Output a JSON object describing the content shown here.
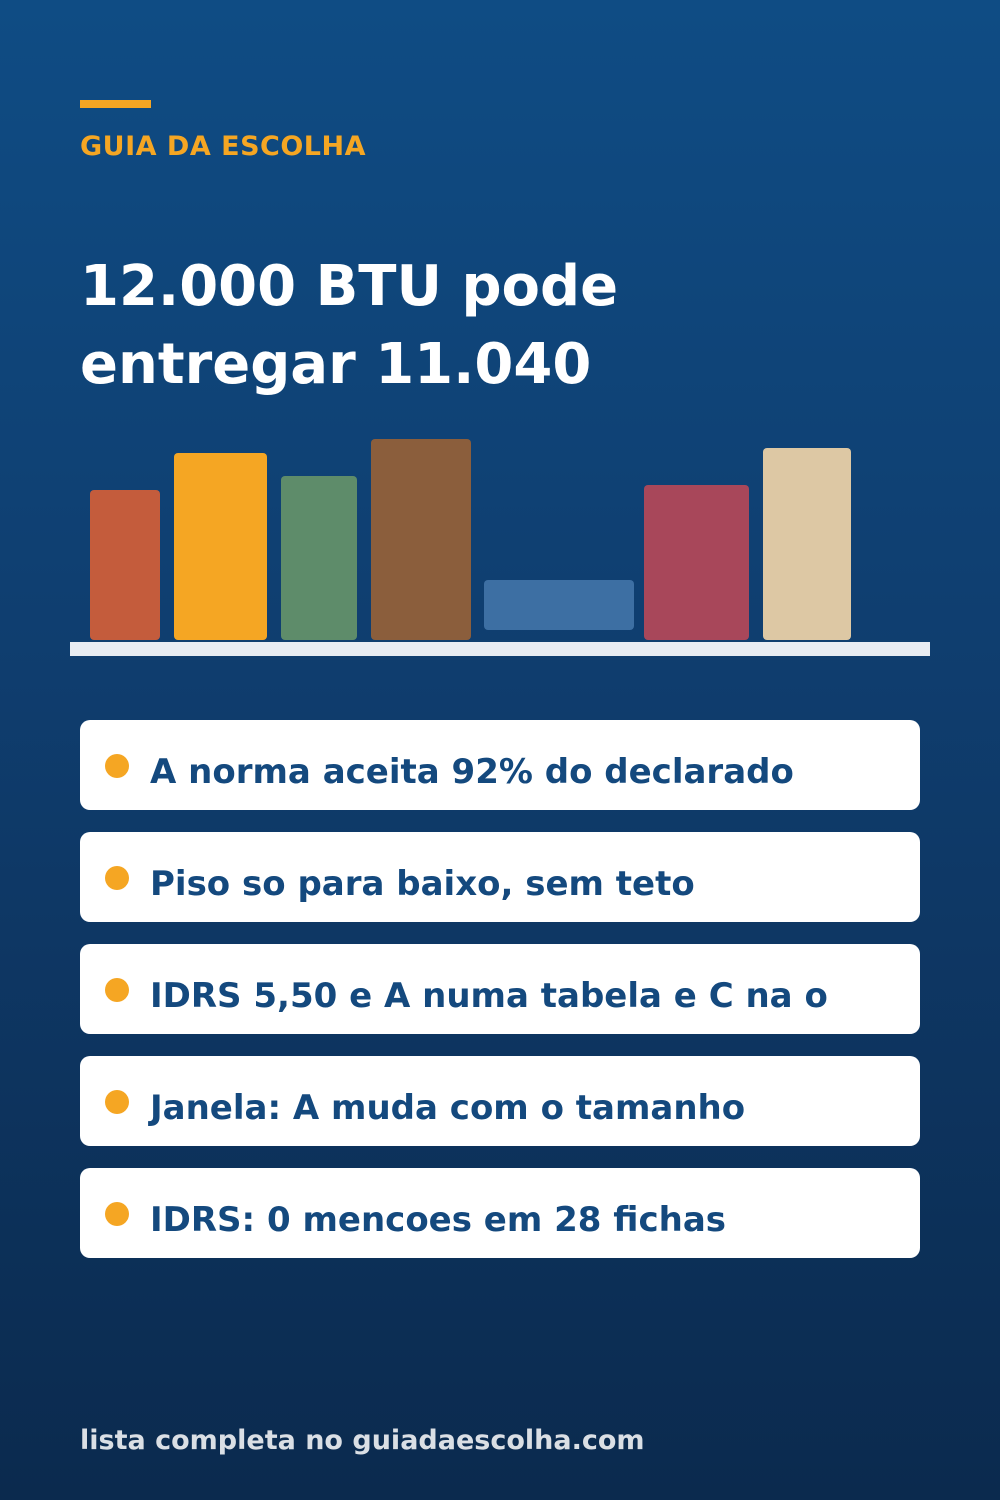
{
  "brand": {
    "label": "GUIA DA ESCOLHA",
    "accent_color": "#f5a623"
  },
  "headline": {
    "line1": "12.000 BTU pode",
    "line2": "entregar 11.040"
  },
  "illustration": {
    "shelf_color": "#e8ecf2",
    "books": [
      {
        "color": "#c45c3c"
      },
      {
        "color": "#f5a623"
      },
      {
        "color": "#5e8c6a"
      },
      {
        "color": "#8b5e3c"
      },
      {
        "color": "#3d6fa3"
      },
      {
        "color": "#a8475a"
      },
      {
        "color": "#ddc8a4"
      }
    ]
  },
  "points": [
    {
      "text": "A norma aceita 92% do declarado"
    },
    {
      "text": "Piso so para baixo, sem teto"
    },
    {
      "text": "IDRS 5,50 e A numa tabela e C na o"
    },
    {
      "text": "Janela: A muda com o tamanho"
    },
    {
      "text": "IDRS: 0 mencoes em 28 fichas"
    }
  ],
  "footer": {
    "text": "lista completa no guiadaescolha.com"
  },
  "colors": {
    "background_top": "#0f4c84",
    "background_bottom": "#0b2a4e",
    "card_text": "#14497e",
    "bullet": "#f5a623"
  }
}
